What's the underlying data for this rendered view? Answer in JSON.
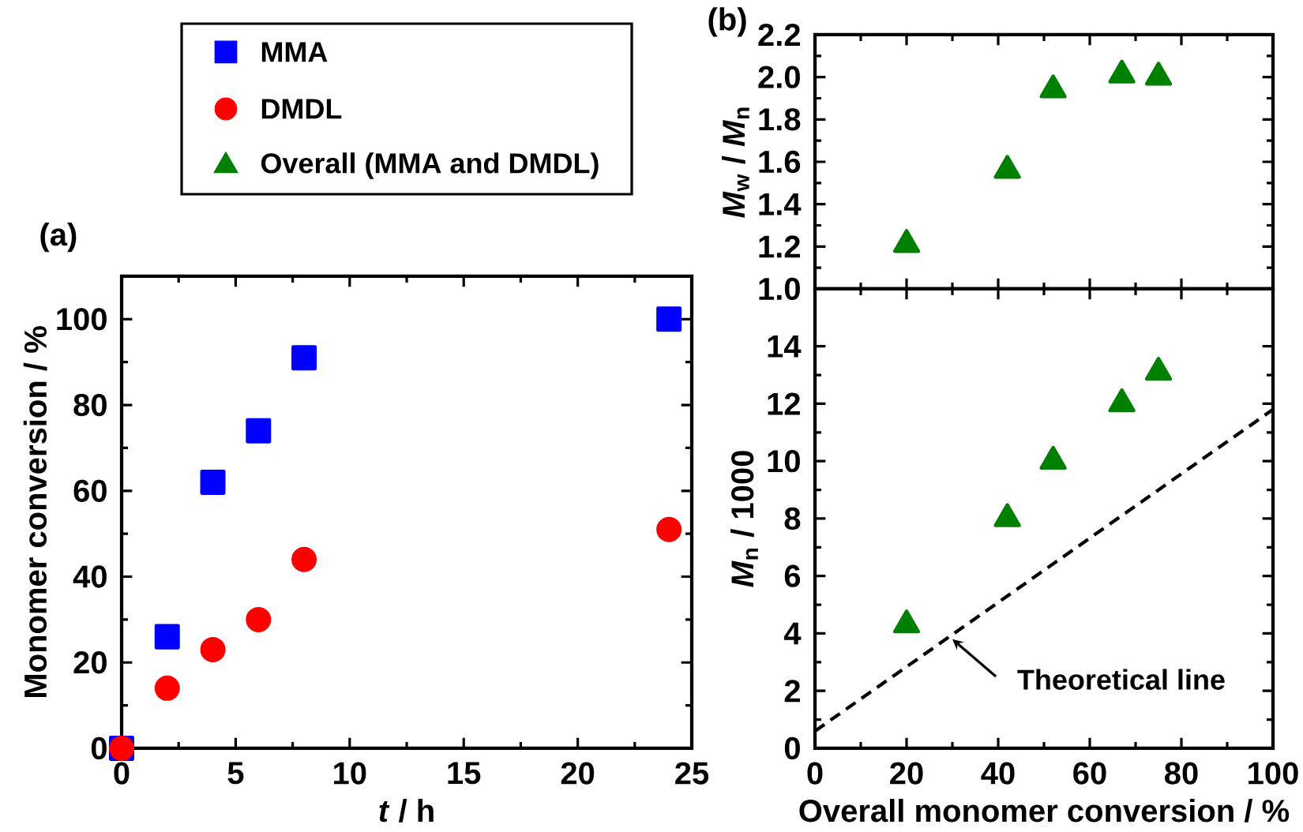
{
  "chart_data": [
    {
      "type": "scatter",
      "title": "(a)",
      "xlabel": "*t* / h",
      "ylabel": "Monomer conversion / %",
      "xlim": [
        0,
        25
      ],
      "ylim": [
        0,
        110
      ],
      "xticks": [
        0,
        5,
        10,
        15,
        20,
        25
      ],
      "yticks": [
        0,
        20,
        40,
        60,
        80,
        100
      ],
      "legend": "top",
      "series": [
        {
          "name": "MMA",
          "color": "#0000ff",
          "marker": "square",
          "x": [
            0,
            2,
            4,
            6,
            8,
            24
          ],
          "values": [
            0,
            26,
            62,
            74,
            91,
            100
          ]
        },
        {
          "name": "DMDL",
          "color": "#ff0000",
          "marker": "circle",
          "x": [
            0,
            2,
            4,
            6,
            8,
            24
          ],
          "values": [
            0,
            14,
            23,
            30,
            44,
            51
          ]
        }
      ]
    },
    {
      "type": "scatter",
      "title": "(b)",
      "ylabel": "*M*$_{w}$ / *M*$_{n}$",
      "xlim": [
        0,
        100
      ],
      "ylim": [
        1.0,
        2.2
      ],
      "xticks": [
        0,
        20,
        40,
        60,
        80,
        100
      ],
      "yticks": [
        {
          "value": 1.0,
          "label": "1.0"
        },
        1.2,
        1.4,
        1.6,
        1.8,
        {
          "value": 2.0,
          "label": "2.0"
        },
        2.2
      ],
      "tick_labels": "y",
      "legend": "left",
      "series": [
        {
          "name": "Overall (MMA and DMDL)",
          "color": "#008000",
          "marker": "triangle",
          "x": [
            20,
            42,
            52,
            67,
            75
          ],
          "values": [
            1.21,
            1.56,
            1.94,
            2.01,
            2.0
          ]
        }
      ]
    },
    {
      "type": "scatter",
      "xlabel": "Overall monomer conversion / %",
      "ylabel": "*M*$_{n}$ / 1000",
      "xlim": [
        0,
        100
      ],
      "ylim": [
        0,
        16
      ],
      "xticks": [
        0,
        20,
        40,
        60,
        80,
        100
      ],
      "yticks": [
        0,
        2,
        4,
        6,
        8,
        10,
        12,
        14
      ],
      "series": [
        {
          "color": "#008000",
          "marker": "triangle",
          "x": [
            20,
            42,
            52,
            67,
            75
          ],
          "values": [
            4.3,
            8.0,
            10.0,
            12.0,
            13.1
          ]
        },
        {
          "type": "line",
          "color": "#000000",
          "marker": "none",
          "line_style": "dashed",
          "x": [
            0,
            100
          ],
          "values": [
            0.6,
            11.8
          ]
        }
      ],
      "annotations": [
        {
          "text": "Theoretical line",
          "x": 30,
          "y": 3.8
        }
      ]
    }
  ]
}
